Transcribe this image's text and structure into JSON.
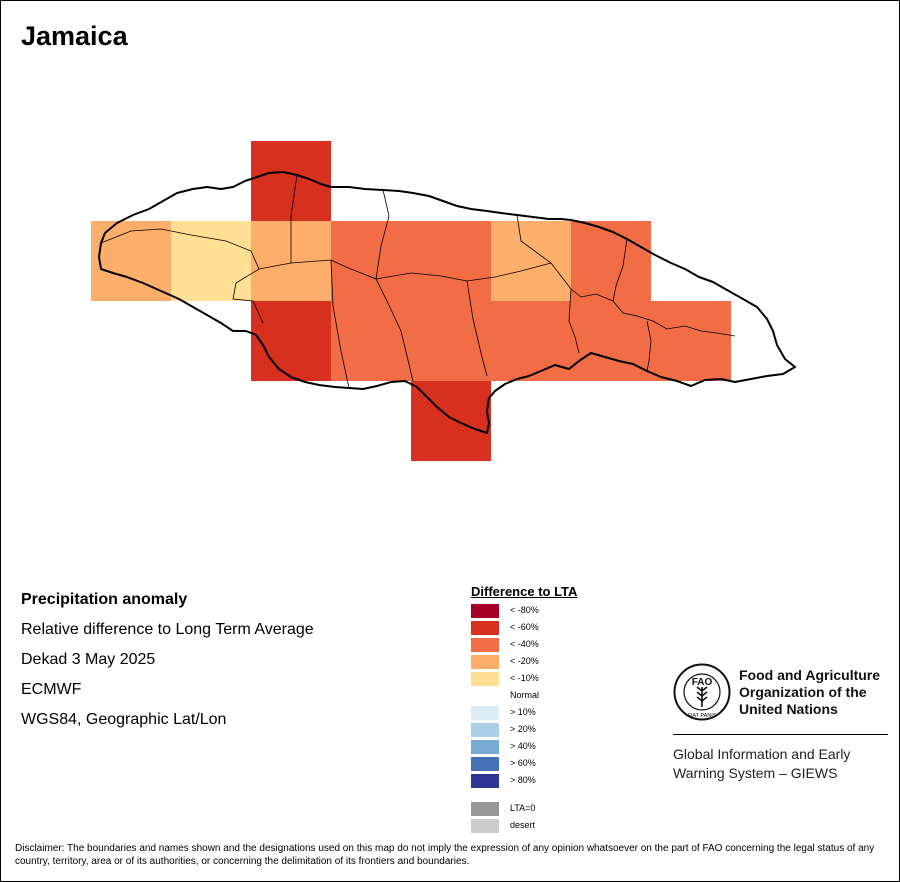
{
  "map": {
    "title": "Jamaica",
    "grid_cells": [
      {
        "class": "< -60%",
        "color": "#d7301f"
      },
      {
        "class": "< -20%",
        "color": "#fdae6b"
      },
      {
        "class": "< -10%",
        "color": "#fedf94"
      },
      {
        "class": "< -40%",
        "color": "#f26d45"
      },
      {
        "class": "< -60%",
        "color": "#d7301f"
      }
    ]
  },
  "info": {
    "line1": "Precipitation anomaly",
    "line2": "Relative difference to Long Term Average",
    "line3": "Dekad 3 May 2025",
    "line4": "ECMWF",
    "line5": "WGS84, Geographic Lat/Lon"
  },
  "legend": {
    "title": "Difference to LTA",
    "items": [
      {
        "label": "< -80%",
        "color": "#a50026"
      },
      {
        "label": "< -60%",
        "color": "#d7301f"
      },
      {
        "label": "< -40%",
        "color": "#f26d45"
      },
      {
        "label": "< -20%",
        "color": "#fdae6b"
      },
      {
        "label": "< -10%",
        "color": "#fedf94"
      },
      {
        "label": "Normal",
        "color": "#ffffff"
      },
      {
        "label": "> 10%",
        "color": "#dcecf7"
      },
      {
        "label": "> 20%",
        "color": "#a9d0e6"
      },
      {
        "label": "> 40%",
        "color": "#76aad5"
      },
      {
        "label": "> 60%",
        "color": "#4472b8"
      },
      {
        "label": "> 80%",
        "color": "#2c3592"
      },
      {
        "label": "LTA=0",
        "color": "#969696"
      },
      {
        "label": "desert",
        "color": "#cbcbcb"
      }
    ]
  },
  "fao": {
    "name": "Food and Agriculture Organization of the United Nations",
    "logo_letters": "FAO",
    "logo_motto": "FIAT PANIS",
    "giews": "Global Information and Early Warning System – GIEWS"
  },
  "disclaimer": "Disclaimer: The boundaries and names shown and the designations used on this map do not imply the expression of any opinion whatsoever on the part of FAO concerning the legal status of any country, territory, area or of its authorities, or concerning the delimitation of its frontiers and boundaries."
}
